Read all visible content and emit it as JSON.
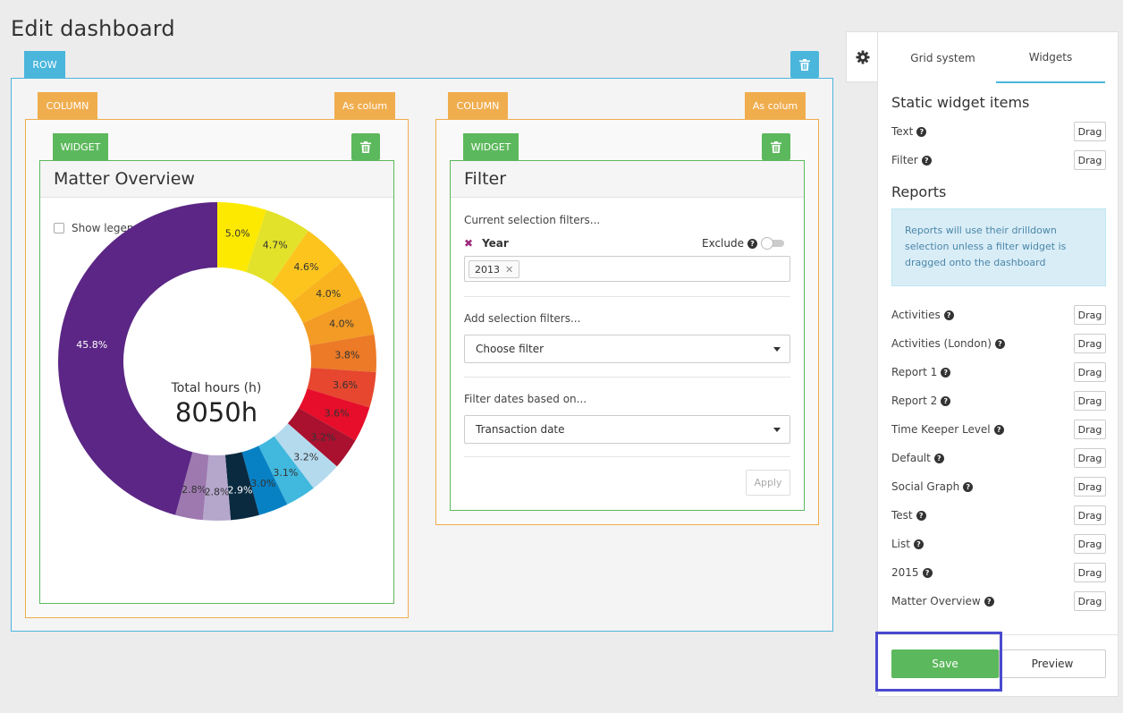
{
  "page": {
    "title": "Edit dashboard"
  },
  "row": {
    "tag": "ROW"
  },
  "left_column": {
    "tag": "COLUMN",
    "as_column": "As colum",
    "widget": {
      "tag": "WIDGET",
      "title": "Matter Overview",
      "show_legend_label": "Show legend",
      "center_label": "Total hours (h)",
      "center_value": "8050h"
    }
  },
  "right_column": {
    "tag": "COLUMN",
    "as_column": "As colum",
    "widget": {
      "tag": "WIDGET",
      "title": "Filter",
      "current_filters_label": "Current selection filters...",
      "year_label": "Year",
      "exclude_label": "Exclude",
      "year_chip": "2013",
      "add_filters_label": "Add selection filters...",
      "choose_filter": "Choose filter",
      "filter_dates_label": "Filter dates based on...",
      "transaction_date": "Transaction date",
      "apply": "Apply"
    }
  },
  "panel": {
    "tabs": [
      {
        "label": "Grid system"
      },
      {
        "label": "Widgets"
      }
    ],
    "static_title": "Static widget items",
    "static_items": [
      {
        "label": "Text"
      },
      {
        "label": "Filter"
      }
    ],
    "reports_title": "Reports",
    "reports_info": "Reports will use their drilldown selection unless a filter widget is dragged onto the dashboard",
    "drag_label": "Drag",
    "report_items": [
      {
        "label": "Activities"
      },
      {
        "label": "Activities (London)"
      },
      {
        "label": "Report 1"
      },
      {
        "label": "Report 2"
      },
      {
        "label": "Time Keeper Level"
      },
      {
        "label": "Default"
      },
      {
        "label": "Social Graph"
      },
      {
        "label": "Test"
      },
      {
        "label": "List"
      },
      {
        "label": "2015"
      },
      {
        "label": "Matter Overview"
      }
    ],
    "save": "Save",
    "preview": "Preview"
  },
  "chart_data": {
    "type": "pie",
    "donut": true,
    "unit": "%",
    "values": [
      5.0,
      4.7,
      4.6,
      4.0,
      4.0,
      3.8,
      3.6,
      3.6,
      3.2,
      3.2,
      3.1,
      3.0,
      2.9,
      2.8,
      2.8,
      45.8
    ],
    "labels": [
      "5.0%",
      "4.7%",
      "4.6%",
      "4.0%",
      "4.0%",
      "3.8%",
      "3.6%",
      "3.6%",
      "3.2%",
      "3.2%",
      "3.1%",
      "3.0%",
      "2.9%",
      "2.8%",
      "2.8%",
      "45.8%"
    ],
    "colors": [
      "#fde900",
      "#e2e22a",
      "#fcc41d",
      "#f8b31e",
      "#f39b24",
      "#ec7a27",
      "#e6472e",
      "#e60e2a",
      "#a9112f",
      "#b4daee",
      "#41b8dd",
      "#0781c4",
      "#0a2a40",
      "#b5a6cc",
      "#9e79b0",
      "#5b2685",
      "#3d1249"
    ],
    "label_colors": [
      "#333",
      "#333",
      "#333",
      "#333",
      "#333",
      "#333",
      "#333",
      "#333",
      "#333",
      "#333",
      "#333",
      "#333",
      "#fff",
      "#333",
      "#333",
      "#fff",
      "#fff"
    ]
  }
}
